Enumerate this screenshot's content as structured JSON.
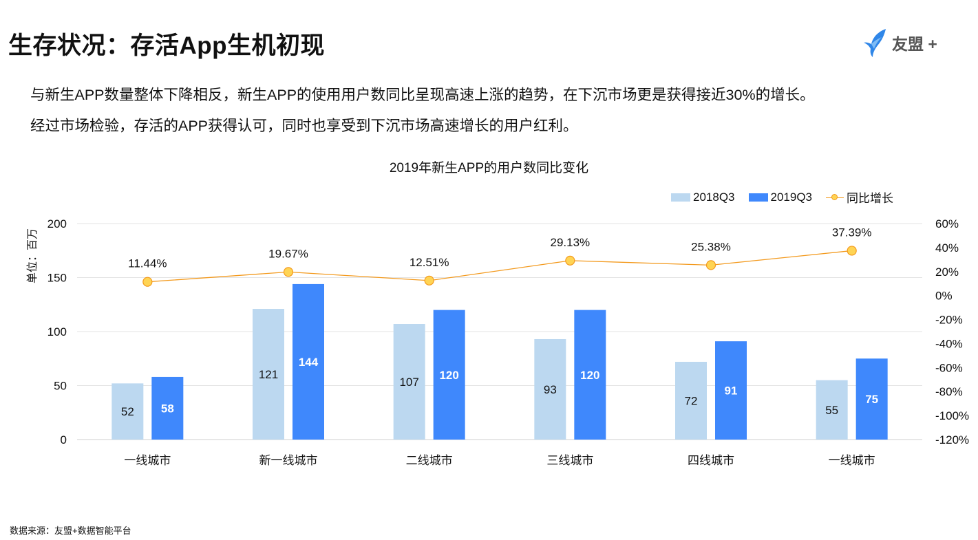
{
  "page": {
    "title": "生存状况：存活App生机初现",
    "logo_text": "友盟 +",
    "intro_lines": [
      "与新生APP数量整体下降相反，新生APP的使用用户数同比呈现高速上涨的趋势，在下沉市场更是获得接近30%的增长。",
      "经过市场检验，存活的APP获得认可，同时也享受到下沉市场高速增长的用户红利。"
    ],
    "source": "数据来源：友盟+数据智能平台"
  },
  "colors": {
    "series_2018": "#bcd8f0",
    "series_2019": "#3f88fc",
    "growth_line": "#f39a1e",
    "growth_marker": "#ffd454",
    "logo_blue": "#2f86e8"
  },
  "chart_data": {
    "type": "bar",
    "title": "2019年新生APP的用户数同比变化",
    "ylabel": "单位：百万",
    "categories": [
      "一线城市",
      "新一线城市",
      "二线城市",
      "三线城市",
      "四线城市",
      "一线城市"
    ],
    "series": [
      {
        "name": "2018Q3",
        "values": [
          52,
          121,
          107,
          93,
          72,
          55
        ],
        "labels": [
          "52",
          "121",
          "107",
          "93",
          "72",
          "55"
        ]
      },
      {
        "name": "2019Q3",
        "values": [
          58,
          144,
          120,
          120,
          91,
          75
        ],
        "labels": [
          "58",
          "144",
          "120",
          "120",
          "91",
          "75"
        ]
      }
    ],
    "growth": {
      "name": "同比增长",
      "type": "line",
      "axis": "right",
      "values": [
        11.44,
        19.67,
        12.51,
        29.13,
        25.38,
        37.39
      ],
      "labels": [
        "11.44%",
        "19.67%",
        "12.51%",
        "29.13%",
        "25.38%",
        "37.39%"
      ]
    },
    "ylim": [
      0,
      200
    ],
    "yticks": [
      0,
      50,
      100,
      150,
      200
    ],
    "ytick_labels": [
      "0",
      "50",
      "100",
      "150",
      "200"
    ],
    "y2lim": [
      -120,
      60
    ],
    "y2ticks": [
      -120,
      -100,
      -80,
      -60,
      -40,
      -20,
      0,
      20,
      40,
      60
    ],
    "y2tick_labels": [
      "-120%",
      "-100%",
      "-80%",
      "-60%",
      "-40%",
      "-20%",
      "0%",
      "20%",
      "40%",
      "60%"
    ],
    "grid": true,
    "legend_position": "top-right"
  }
}
